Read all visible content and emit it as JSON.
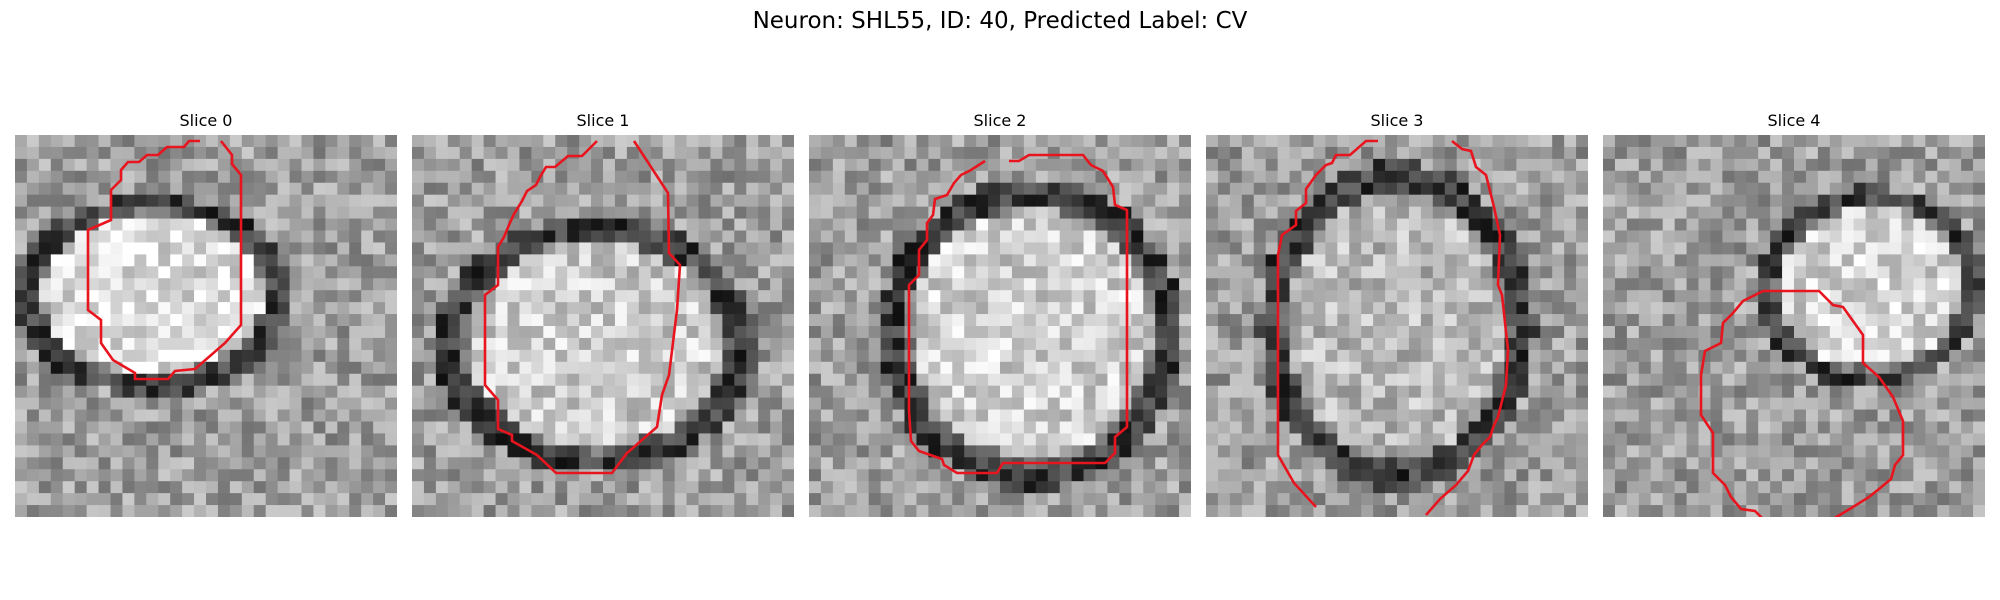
{
  "figure": {
    "title": "Neuron: SHL55, ID: 40, Predicted Label: CV"
  },
  "panels": [
    {
      "title": "Slice 0",
      "mask_color": "#e8141e",
      "icon": "grayscale-microscopy-patch"
    },
    {
      "title": "Slice 1",
      "mask_color": "#e8141e",
      "icon": "grayscale-microscopy-patch"
    },
    {
      "title": "Slice 2",
      "mask_color": "#e8141e",
      "icon": "grayscale-microscopy-patch"
    },
    {
      "title": "Slice 3",
      "mask_color": "#e8141e",
      "icon": "grayscale-microscopy-patch"
    },
    {
      "title": "Slice 4",
      "mask_color": "#e8141e",
      "icon": "grayscale-microscopy-patch"
    }
  ]
}
